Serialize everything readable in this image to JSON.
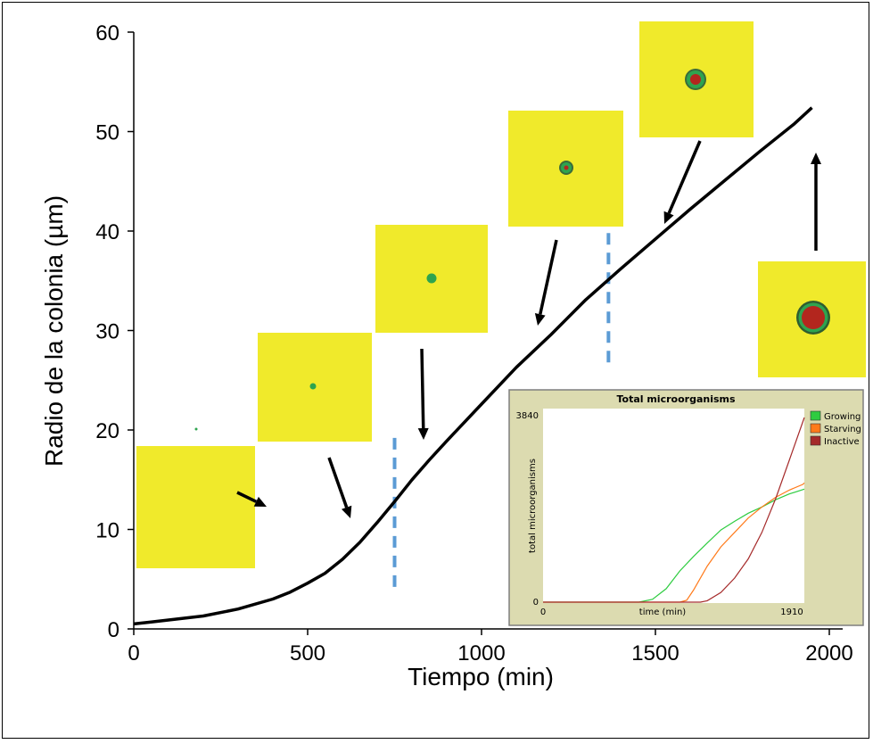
{
  "chart_data": [
    {
      "type": "line",
      "title": "",
      "xlabel": "Tiempo (min)",
      "ylabel": "Radio de la colonia (µm)",
      "xlim": [
        0,
        2000
      ],
      "ylim": [
        0,
        60
      ],
      "x_ticks": [
        "0",
        "500",
        "1000",
        "1500",
        "2000"
      ],
      "y_ticks": [
        "0",
        "10",
        "20",
        "30",
        "40",
        "50",
        "60"
      ],
      "grid": false,
      "legend": "none",
      "line_color": "#000000",
      "series": [
        {
          "x": [
            0,
            50,
            100,
            200,
            300,
            400,
            450,
            500,
            550,
            600,
            650,
            700,
            750,
            800,
            850,
            900,
            1000,
            1100,
            1200,
            1300,
            1400,
            1500,
            1600,
            1700,
            1800,
            1900,
            1950
          ],
          "values": [
            0.5,
            0.7,
            0.9,
            1.3,
            2.0,
            3.0,
            3.7,
            4.6,
            5.6,
            7.0,
            8.7,
            10.7,
            12.8,
            15.0,
            17.0,
            18.9,
            22.6,
            26.3,
            29.6,
            33.1,
            36.2,
            39.2,
            42.2,
            45.1,
            48.0,
            50.8,
            52.4
          ]
        }
      ],
      "phase_markers": {
        "x": [
          750,
          1365
        ],
        "color": "#5b9bd5"
      },
      "snapshot_colors": {
        "medium": "#f0ea2b",
        "growing": "#2ea44f",
        "inactive": "#b3261e"
      }
    },
    {
      "type": "line",
      "title": "Total microorganisms",
      "xlabel": "time (min)",
      "ylabel": "total microorganisms",
      "xlim": [
        0,
        1910
      ],
      "ylim": [
        0,
        3840
      ],
      "x_tick_labels": [
        "0",
        "1910"
      ],
      "y_tick_labels": [
        "0",
        "3840"
      ],
      "legend": "top-right",
      "series": [
        {
          "name": "Growing",
          "color": "#2ecc40",
          "x": [
            0,
            700,
            800,
            900,
            1000,
            1100,
            1200,
            1300,
            1400,
            1500,
            1600,
            1700,
            1800,
            1910
          ],
          "values": [
            0,
            0,
            60,
            280,
            650,
            950,
            1230,
            1500,
            1680,
            1850,
            1980,
            2130,
            2250,
            2350
          ]
        },
        {
          "name": "Starving",
          "color": "#ff7a1a",
          "x": [
            0,
            1000,
            1050,
            1100,
            1200,
            1300,
            1400,
            1500,
            1600,
            1700,
            1800,
            1900,
            1910
          ],
          "values": [
            0,
            0,
            40,
            250,
            750,
            1150,
            1450,
            1750,
            1980,
            2180,
            2330,
            2450,
            2480
          ]
        },
        {
          "name": "Inactive",
          "color": "#a52a2a",
          "x": [
            0,
            1150,
            1200,
            1300,
            1400,
            1500,
            1600,
            1700,
            1800,
            1910
          ],
          "values": [
            0,
            0,
            30,
            200,
            500,
            900,
            1450,
            2150,
            2950,
            3840
          ]
        }
      ]
    }
  ]
}
